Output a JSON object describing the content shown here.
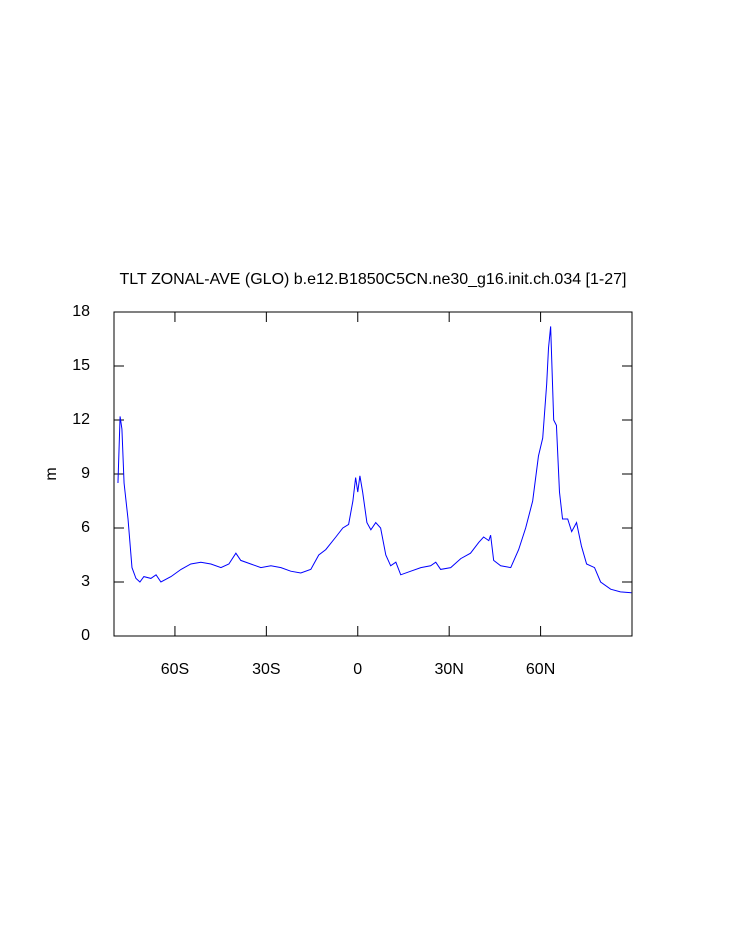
{
  "chart_data": {
    "type": "line",
    "title": "TLT ZONAL-AVE (GLO) b.e12.B1850C5CN.ne30_g16.init.ch.034 [1-27]",
    "y_label": "m",
    "xlim": [
      -80,
      90
    ],
    "ylim": [
      0,
      18
    ],
    "xticks": [
      {
        "value": -60,
        "label": "60S"
      },
      {
        "value": -30,
        "label": "30S"
      },
      0,
      {
        "value": 30,
        "label": "30N"
      },
      {
        "value": 60,
        "label": "60N"
      }
    ],
    "yticks": [
      0,
      3,
      6,
      9,
      12,
      15,
      18
    ],
    "series": [
      {
        "color": "#0000ff",
        "x": [
          -78.7,
          -78,
          -77.4,
          -76.7,
          -75.4,
          -74.1,
          -72.8,
          -71.5,
          -70.2,
          -67.9,
          -66.2,
          -64.6,
          -61.3,
          -58,
          -54.8,
          -51.5,
          -48.2,
          -44.9,
          -42.3,
          -40,
          -38.4,
          -35.1,
          -31.8,
          -28.5,
          -25.2,
          -22,
          -18.7,
          -15.4,
          -12.8,
          -10.5,
          -7.2,
          -4.9,
          -3,
          -1.6,
          -0.7,
          0,
          0.7,
          1.6,
          3,
          4.3,
          5.9,
          7.5,
          9.2,
          10.8,
          12.5,
          14.1,
          17.4,
          20.7,
          23.9,
          25.6,
          27.2,
          30.5,
          33.8,
          37,
          39.7,
          41.3,
          43,
          43.6,
          44.6,
          46.9,
          50.2,
          52.8,
          55.1,
          57.4,
          59.3,
          60.7,
          62,
          62.6,
          63.3,
          64.3,
          65.2,
          66.2,
          67.2,
          68.9,
          70.2,
          71.8,
          73.4,
          75.1,
          77.7,
          79.7,
          83,
          86.2,
          89.8
        ],
        "values": [
          8.5,
          12.2,
          11.5,
          8.5,
          6.5,
          3.8,
          3.2,
          3.0,
          3.3,
          3.2,
          3.4,
          3.0,
          3.3,
          3.7,
          4.0,
          4.1,
          4.0,
          3.8,
          4.0,
          4.6,
          4.2,
          4.0,
          3.8,
          3.9,
          3.8,
          3.6,
          3.5,
          3.7,
          4.5,
          4.8,
          5.5,
          6.0,
          6.2,
          7.5,
          8.8,
          8.0,
          8.9,
          8.0,
          6.3,
          5.9,
          6.3,
          6.0,
          4.5,
          3.9,
          4.1,
          3.4,
          3.6,
          3.8,
          3.9,
          4.1,
          3.7,
          3.8,
          4.3,
          4.6,
          5.2,
          5.5,
          5.3,
          5.6,
          4.2,
          3.9,
          3.8,
          4.8,
          6.0,
          7.5,
          10.0,
          11.0,
          14.0,
          16.0,
          17.2,
          12.0,
          11.7,
          8.0,
          6.5,
          6.5,
          5.8,
          6.3,
          5.0,
          4.0,
          3.8,
          3.0,
          2.6,
          2.45,
          2.4
        ]
      }
    ]
  }
}
